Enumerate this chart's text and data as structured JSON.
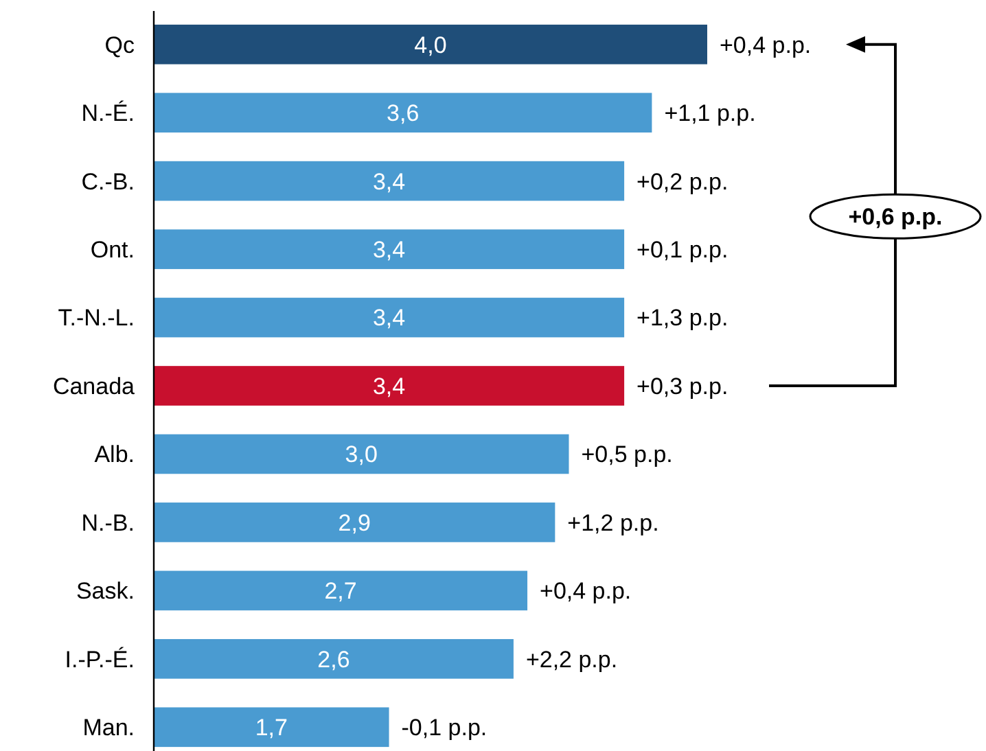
{
  "chart_data": {
    "type": "bar",
    "orientation": "horizontal",
    "categories": [
      "Qc",
      "N.-É.",
      "C.-B.",
      "Ont.",
      "T.-N.-L.",
      "Canada",
      "Alb.",
      "N.-B.",
      "Sask.",
      "I.-P.-É.",
      "Man."
    ],
    "values": [
      4.0,
      3.6,
      3.4,
      3.4,
      3.4,
      3.4,
      3.0,
      2.9,
      2.7,
      2.6,
      1.7
    ],
    "value_labels": [
      "4,0",
      "3,6",
      "3,4",
      "3,4",
      "3,4",
      "3,4",
      "3,0",
      "2,9",
      "2,7",
      "2,6",
      "1,7"
    ],
    "colors": [
      "#1f4e79",
      "#4a9bd1",
      "#4a9bd1",
      "#4a9bd1",
      "#4a9bd1",
      "#c8102e",
      "#4a9bd1",
      "#4a9bd1",
      "#4a9bd1",
      "#4a9bd1",
      "#4a9bd1"
    ],
    "annotations": [
      {
        "text": "+0,4 p.p.",
        "x": 4.0,
        "y": "Qc"
      },
      {
        "text": "+1,1 p.p.",
        "x": 3.6,
        "y": "N.-É."
      },
      {
        "text": "+0,2 p.p.",
        "x": 3.4,
        "y": "C.-B."
      },
      {
        "text": "+0,1 p.p.",
        "x": 3.4,
        "y": "Ont."
      },
      {
        "text": "+1,3 p.p.",
        "x": 3.4,
        "y": "T.-N.-L."
      },
      {
        "text": "+0,3 p.p.",
        "x": 3.4,
        "y": "Canada"
      },
      {
        "text": "+0,5 p.p.",
        "x": 3.0,
        "y": "Alb."
      },
      {
        "text": "+1,2 p.p.",
        "x": 2.9,
        "y": "N.-B."
      },
      {
        "text": "+0,4 p.p.",
        "x": 2.7,
        "y": "Sask."
      },
      {
        "text": "+2,2 p.p.",
        "x": 2.6,
        "y": "I.-P.-É."
      },
      {
        "text": "-0,1 p.p.",
        "x": 1.7,
        "y": "Man."
      },
      "+0,6 p.p."
    ]
  }
}
